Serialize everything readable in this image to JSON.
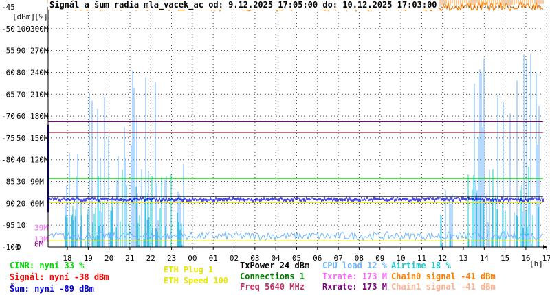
{
  "title": "Signál a šum radia mla_vacek_ac od: 9.12.2025 17:05:00 do: 10.12.2025 17:03:00",
  "chart_data": {
    "type": "line",
    "axis_unit_labels": {
      "dbm": "[dBm]",
      "percent": "[%]",
      "hours": "[h]"
    },
    "y_dbm_ticks": [
      "-45",
      "-50",
      "-55",
      "-60",
      "-65",
      "-70",
      "-75",
      "-80",
      "-85",
      "-90",
      "-95",
      "-100"
    ],
    "y_percent_ticks": [
      "100",
      "90",
      "80",
      "70",
      "60",
      "50",
      "40",
      "30",
      "20",
      "10",
      "0"
    ],
    "y_rate_ticks": [
      "300M",
      "270M",
      "240M",
      "210M",
      "180M",
      "150M",
      "120M",
      "90M",
      "60M"
    ],
    "y_rate_small_ticks": [
      "39M",
      "13M",
      "6M"
    ],
    "ylim_dbm": [
      -100,
      -45
    ],
    "x_ticks": [
      "18",
      "19",
      "20",
      "21",
      "22",
      "23",
      "00",
      "01",
      "02",
      "03",
      "04",
      "05",
      "06",
      "07",
      "08",
      "09",
      "10",
      "11",
      "12",
      "13",
      "14",
      "15",
      "16",
      "17"
    ],
    "series": [
      {
        "name": "CINR",
        "color": "#00ff00",
        "level_percent": 33
      },
      {
        "name": "Signál",
        "color": "#ff0000",
        "level_dbm": -38
      },
      {
        "name": "Šum",
        "color": "#0000ff",
        "level_dbm": -89
      },
      {
        "name": "CPU load",
        "color": "#6eb4ff",
        "level_percent": 12
      },
      {
        "name": "Airtime",
        "color": "#1ec8c8",
        "level_percent": 18
      },
      {
        "name": "Txrate",
        "color": "#ff60ff",
        "level_mbps": 173
      },
      {
        "name": "Rxrate",
        "color": "#800080",
        "level_mbps": 173
      },
      {
        "name": "Chain0 signal",
        "color": "#ff8000",
        "level_dbm": -41
      },
      {
        "name": "ETH Speed",
        "color": "#ffff00",
        "level_mbps": 100
      }
    ]
  },
  "legend": {
    "cinr": "CINR: nyní 33 %",
    "signal": "Signál: nyní -38 dBm",
    "noise": "Šum: nyní -89 dBm",
    "eth_plug": "ETH Plug 1",
    "eth_speed": "ETH Speed 100",
    "txpower": "TxPower 24 dBm",
    "connections": "Connections 1",
    "freq": "Freq 5640 MHz",
    "cpu": "CPU load 12 %",
    "txrate": "Txrate: 173 M",
    "rxrate": "Rxrate: 173 M",
    "airtime": "Airtime 18 %",
    "chain0": "Chain0 signal -41 dBm",
    "chain1": "Chain1 signal -41 dBm"
  },
  "colors": {
    "cinr": "#00dd00",
    "signal": "#ff0000",
    "noise": "#0000dd",
    "eth": "#e8e800",
    "txpower": "#000000",
    "connections": "#008000",
    "freq": "#c03060",
    "cpu": "#6eb4ff",
    "txrate": "#ff66ff",
    "rxrate": "#800080",
    "airtime": "#20c8c8",
    "chain0": "#ff8000",
    "chain1": "#ffb090"
  }
}
